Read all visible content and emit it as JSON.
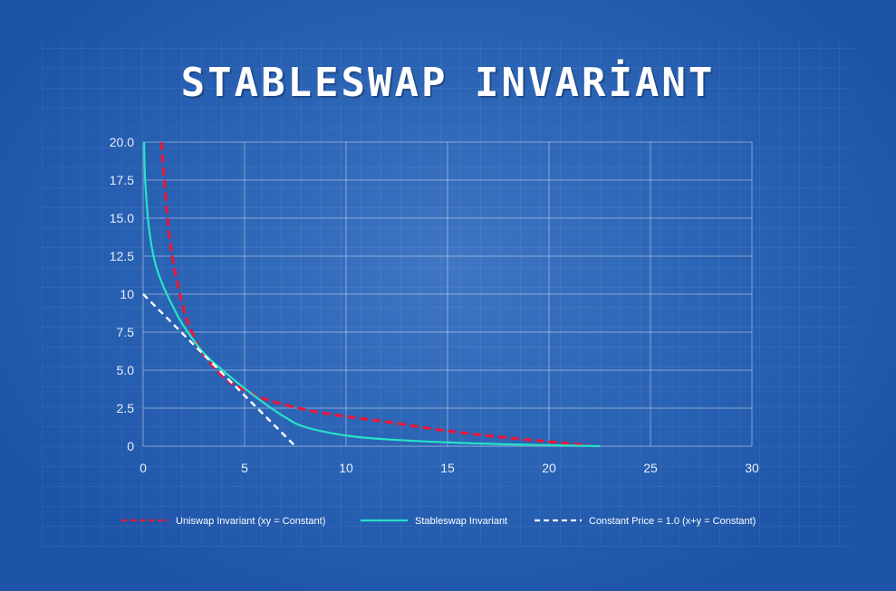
{
  "chart_data": {
    "type": "line",
    "title": "STABLESWAP INVARİANT",
    "xlabel": "",
    "ylabel": "",
    "xlim": [
      0,
      30
    ],
    "ylim": [
      0,
      20
    ],
    "x_ticks": [
      "0",
      "5",
      "10",
      "15",
      "20",
      "25",
      "30"
    ],
    "y_ticks": [
      "0",
      "2.5",
      "5.0",
      "7.5",
      "10",
      "12.5",
      "15.0",
      "17.5",
      "20.0"
    ],
    "grid": true,
    "legend_position": "bottom",
    "series": [
      {
        "name": "Uniswap Invariant (xy = Constant)",
        "style": "dashed",
        "color": "#e8173a",
        "x": [
          0.9,
          1.2,
          1.5,
          2,
          2.5,
          3,
          4,
          5,
          6,
          8,
          10,
          12,
          15,
          18,
          20,
          22
        ],
        "y": [
          20,
          15,
          12,
          9,
          7.2,
          6,
          4.5,
          3.7,
          3.1,
          2.4,
          1.95,
          1.6,
          1.0,
          0.55,
          0.3,
          0.05
        ]
      },
      {
        "name": "Stableswap Invariant",
        "style": "solid",
        "color": "#27e3c6",
        "x": [
          0.05,
          0.1,
          0.3,
          0.6,
          1,
          1.5,
          2,
          3,
          4,
          5,
          6,
          7,
          8,
          10,
          12,
          15,
          18,
          20,
          22.5
        ],
        "y": [
          20,
          17.5,
          14.2,
          12,
          10.5,
          9.1,
          7.9,
          6.1,
          4.9,
          3.8,
          2.8,
          1.9,
          1.25,
          0.7,
          0.45,
          0.25,
          0.12,
          0.07,
          0
        ]
      },
      {
        "name": "Constant Price = 1.0 (x+y = Constant)",
        "style": "dashed",
        "color": "#ffffff",
        "x": [
          0,
          7.5
        ],
        "y": [
          10,
          0
        ]
      }
    ]
  }
}
